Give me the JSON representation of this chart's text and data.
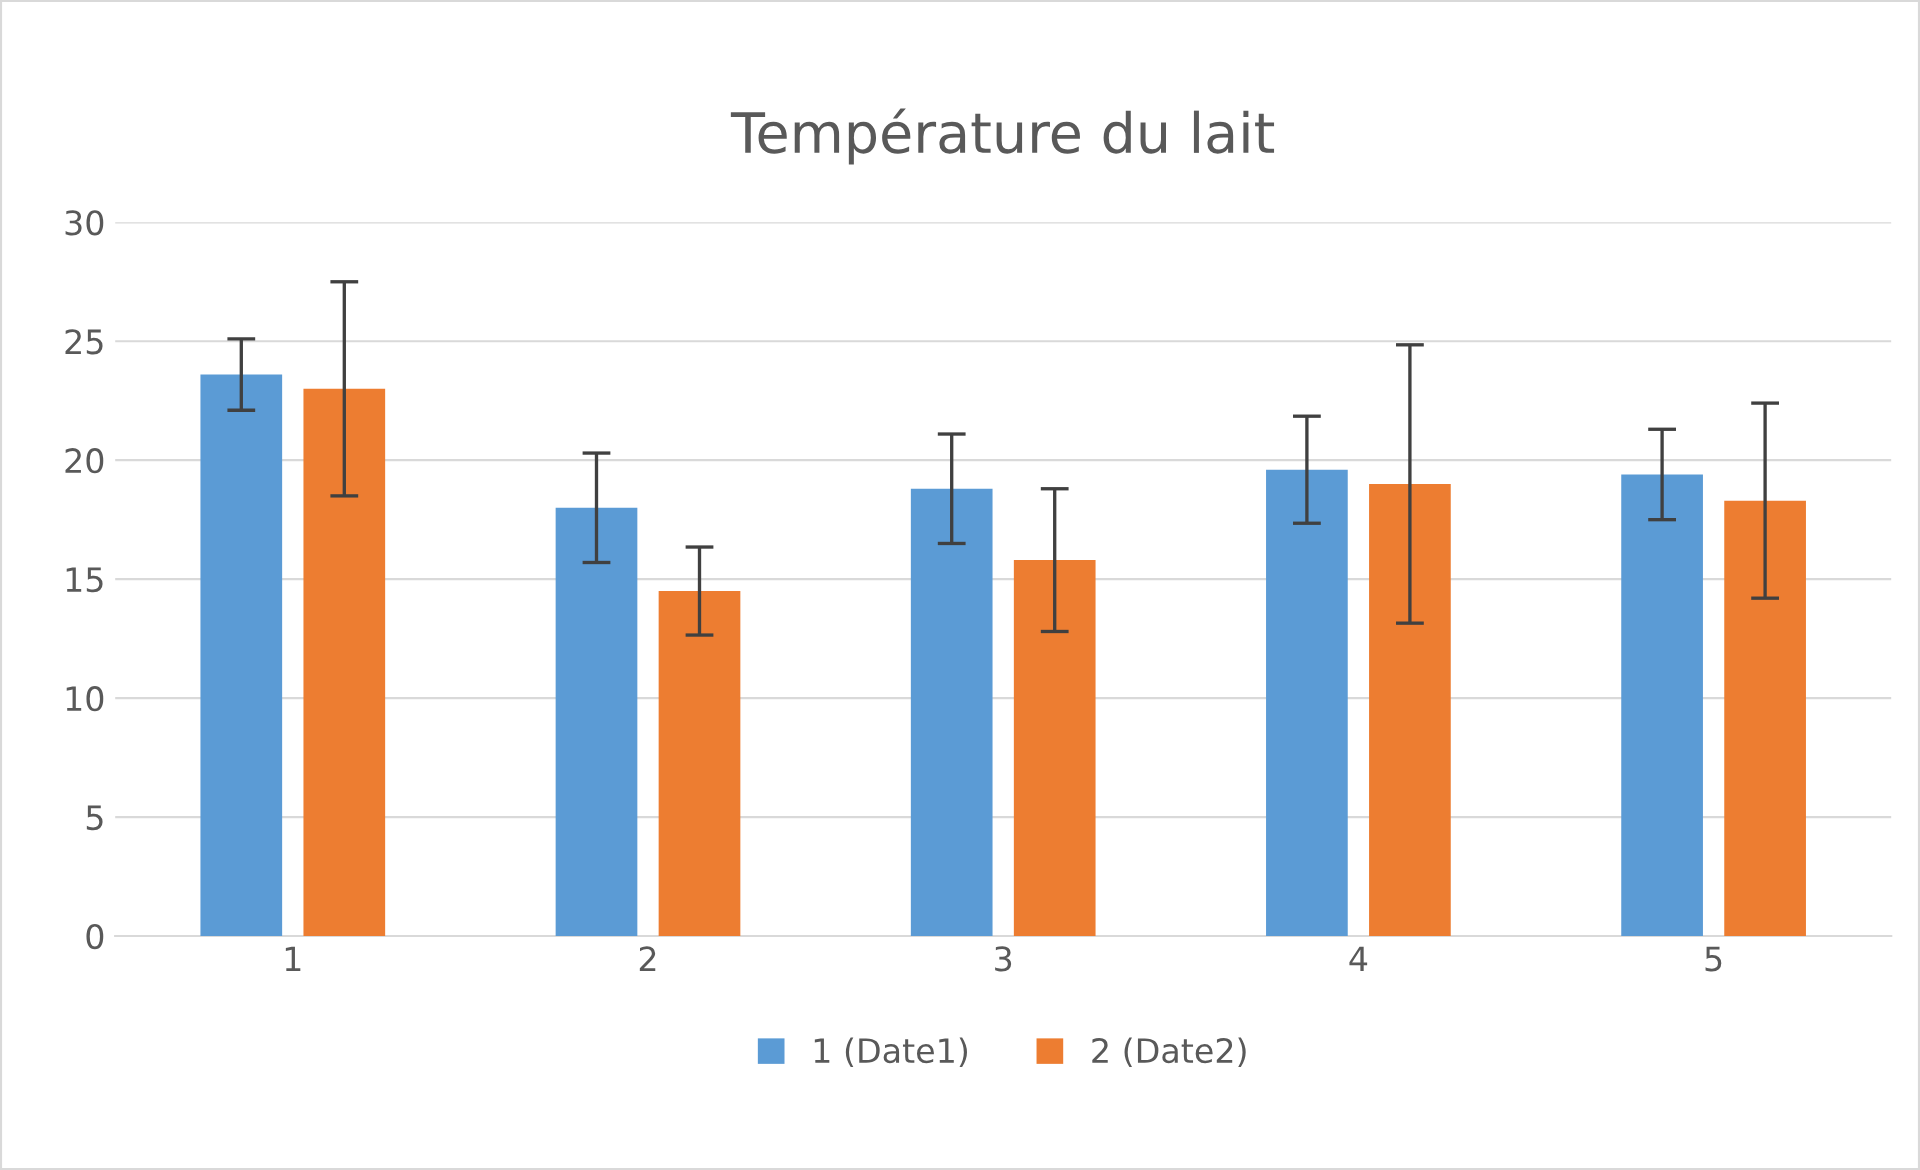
{
  "chart_data": {
    "type": "bar",
    "title": "Température du lait",
    "categories": [
      "1",
      "2",
      "3",
      "4",
      "5"
    ],
    "series": [
      {
        "name": "1 (Date1)",
        "color": "#5b9bd5",
        "values": [
          23.6,
          18.0,
          18.8,
          19.6,
          19.4
        ],
        "errors": [
          1.5,
          2.3,
          2.3,
          2.25,
          1.9
        ]
      },
      {
        "name": "2 (Date2)",
        "color": "#ed7d31",
        "values": [
          23.0,
          14.5,
          15.8,
          19.0,
          18.3
        ],
        "errors": [
          4.5,
          1.85,
          3.0,
          5.85,
          4.1
        ]
      }
    ],
    "ylim": [
      0,
      30
    ],
    "yticks": [
      0,
      5,
      10,
      15,
      20,
      25,
      30
    ],
    "grid": "y",
    "legend": "bottom"
  }
}
